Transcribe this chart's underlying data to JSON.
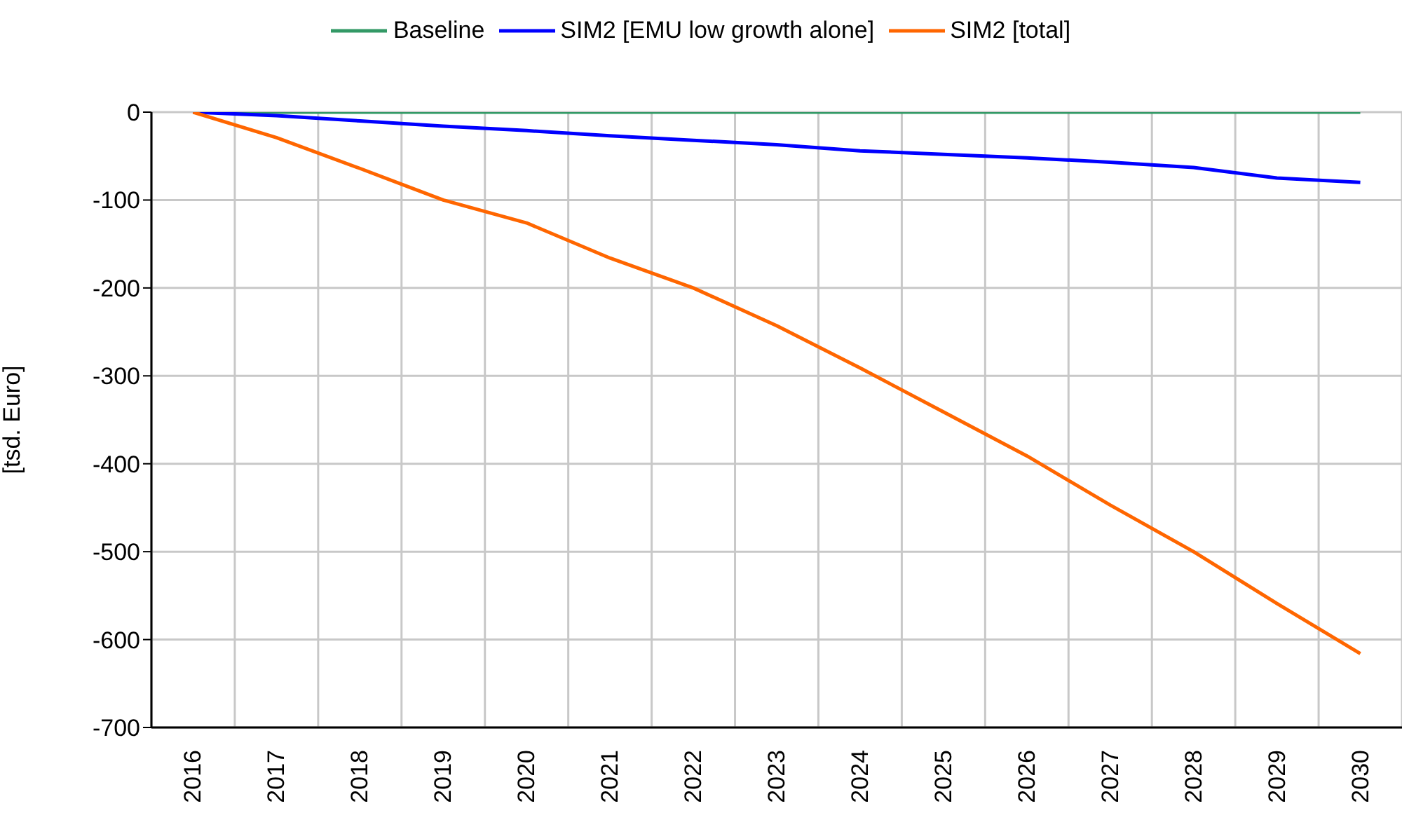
{
  "chart_data": {
    "type": "line",
    "ylabel": "[tsd. Euro]",
    "categories": [
      "2016",
      "2017",
      "2018",
      "2019",
      "2020",
      "2021",
      "2022",
      "2023",
      "2024",
      "2025",
      "2026",
      "2027",
      "2028",
      "2029",
      "2030"
    ],
    "series": [
      {
        "name": "Baseline",
        "color": "#339966",
        "values": [
          0,
          0,
          0,
          0,
          0,
          0,
          0,
          0,
          0,
          0,
          0,
          0,
          0,
          0,
          0
        ]
      },
      {
        "name": "SIM2 [EMU low growth alone]",
        "color": "#0000ff",
        "values": [
          0,
          -4,
          -10,
          -16,
          -21,
          -27,
          -32,
          -37,
          -44,
          -48,
          -52,
          -57,
          -63,
          -75,
          -80
        ]
      },
      {
        "name": "SIM2 [total]",
        "color": "#ff6600",
        "values": [
          0,
          -29,
          -64,
          -100,
          -126,
          -166,
          -200,
          -243,
          -291,
          -341,
          -391,
          -447,
          -500,
          -559,
          -616
        ]
      }
    ],
    "ylim": [
      -700,
      0
    ],
    "yticks": [
      -700,
      -600,
      -500,
      -400,
      -300,
      -200,
      -100,
      0
    ],
    "grid": true,
    "legend": "top"
  }
}
